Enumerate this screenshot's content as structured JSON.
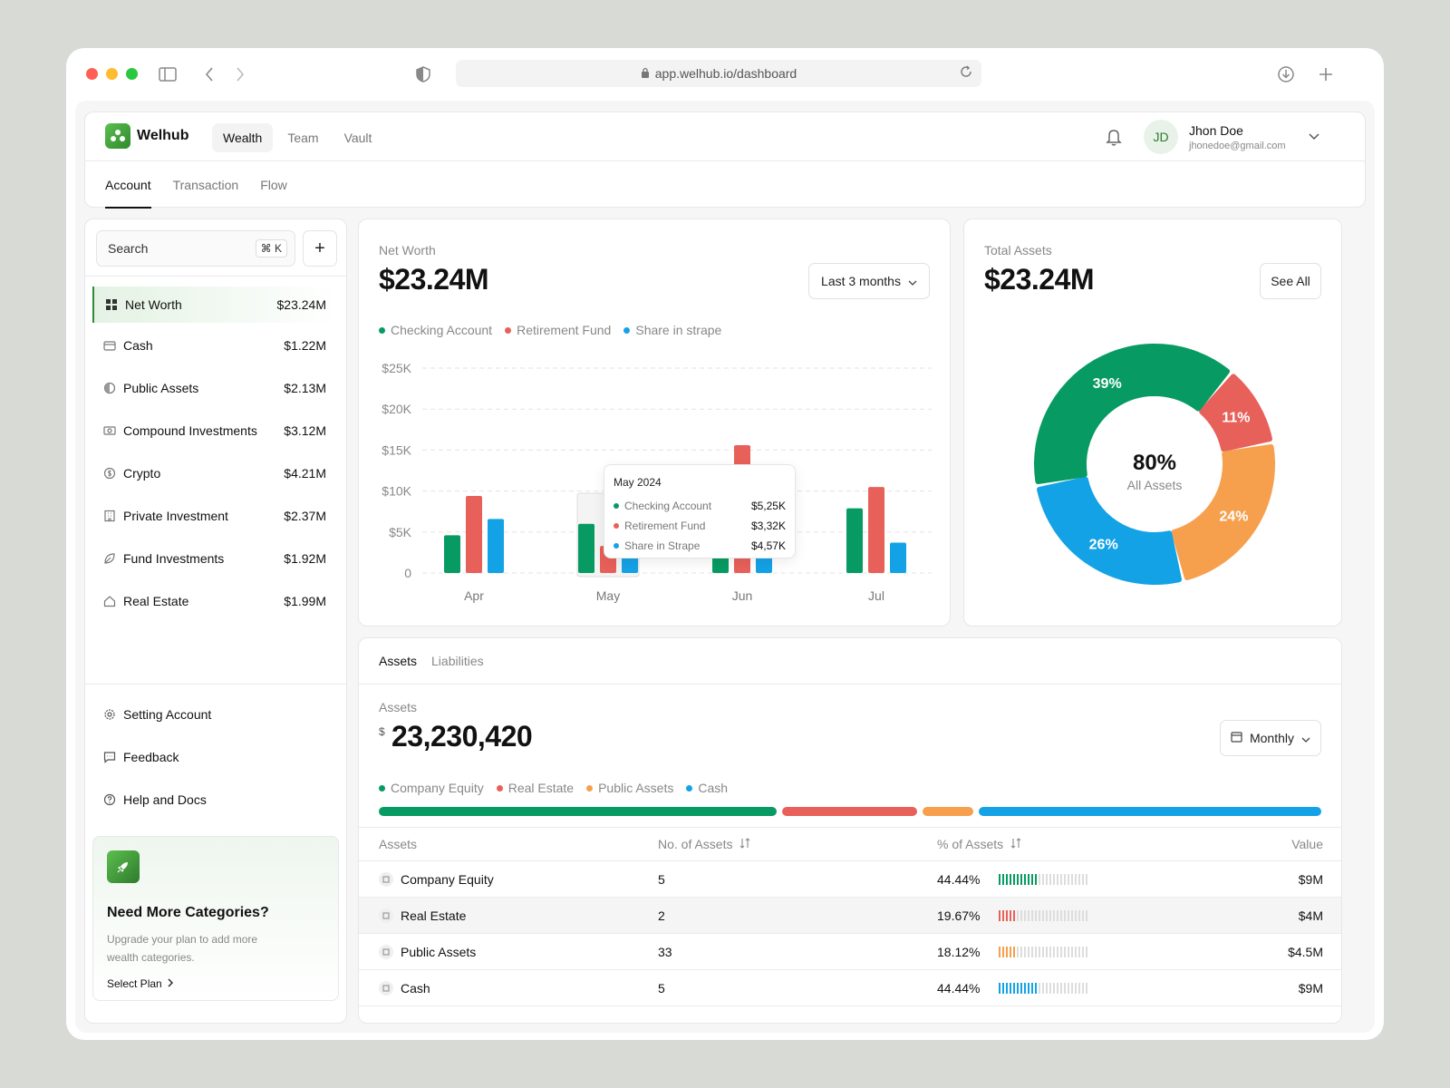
{
  "browser": {
    "url": "app.welhub.io/dashboard"
  },
  "brand": {
    "name": "Welhub",
    "accent": "#2f8a3a"
  },
  "main_tabs": [
    {
      "label": "Wealth",
      "active": true
    },
    {
      "label": "Team"
    },
    {
      "label": "Vault"
    }
  ],
  "user": {
    "initials": "JD",
    "name": "Jhon Doe",
    "email": "jhonedoe@gmail.com"
  },
  "sub_tabs": [
    {
      "label": "Account",
      "active": true
    },
    {
      "label": "Transaction"
    },
    {
      "label": "Flow"
    }
  ],
  "sidebar": {
    "search_placeholder": "Search",
    "shortcut": "⌘ K",
    "add_label": "+",
    "items": [
      {
        "label": "Net Worth",
        "value": "$23.24M",
        "icon": "grid-icon",
        "active": true
      },
      {
        "label": "Cash",
        "value": "$1.22M",
        "icon": "wallet-icon"
      },
      {
        "label": "Public Assets",
        "value": "$2.13M",
        "icon": "pie-icon"
      },
      {
        "label": "Compound Investments",
        "value": "$3.12M",
        "icon": "bill-icon"
      },
      {
        "label": "Crypto",
        "value": "$4.21M",
        "icon": "coin-icon"
      },
      {
        "label": "Private Investment",
        "value": "$2.37M",
        "icon": "building-icon"
      },
      {
        "label": "Fund Investments",
        "value": "$1.92M",
        "icon": "leaf-icon"
      },
      {
        "label": "Real Estate",
        "value": "$1.99M",
        "icon": "home-icon"
      }
    ],
    "footer": [
      {
        "label": "Setting Account",
        "icon": "gear-icon"
      },
      {
        "label": "Feedback",
        "icon": "message-icon"
      },
      {
        "label": "Help and Docs",
        "icon": "help-icon"
      }
    ],
    "promo": {
      "title": "Need More Categories?",
      "text": "Upgrade your plan to add more wealth categories.",
      "link": "Select Plan"
    }
  },
  "net_worth": {
    "label": "Net Worth",
    "value": "$23.24M",
    "range": "Last 3 months",
    "tooltip": {
      "title": "May 2024",
      "rows": [
        {
          "label": "Checking Account",
          "value": "$5,25K"
        },
        {
          "label": "Retirement Fund",
          "value": "$3,32K"
        },
        {
          "label": "Share in Strape",
          "value": "$4,57K"
        }
      ]
    }
  },
  "total_assets": {
    "label": "Total Assets",
    "value": "$23.24M",
    "see_all": "See All",
    "center_value": "80%",
    "center_label": "All Assets"
  },
  "assets": {
    "tabs": [
      {
        "label": "Assets",
        "active": true
      },
      {
        "label": "Liabilities"
      }
    ],
    "label": "Assets",
    "currency": "$",
    "value": "23,230,420",
    "period": "Monthly",
    "legend": [
      {
        "label": "Company Equity",
        "color": "#079b63"
      },
      {
        "label": "Real Estate",
        "color": "#e8605a"
      },
      {
        "label": "Public Assets",
        "color": "#f6a04d"
      },
      {
        "label": "Cash",
        "color": "#14a2e6"
      }
    ],
    "share_bar": [
      0.43,
      0.145,
      0.055,
      0.37
    ],
    "columns": [
      "Assets",
      "No. of Assets",
      "% of Assets",
      "Value"
    ],
    "rows": [
      {
        "name": "Company Equity",
        "count": "5",
        "pct": "44.44%",
        "pct_num": 0.4444,
        "value": "$9M",
        "color": "#079b63",
        "icon": "bank-icon"
      },
      {
        "name": "Real Estate",
        "count": "2",
        "pct": "19.67%",
        "pct_num": 0.1967,
        "value": "$4M",
        "color": "#e8605a",
        "icon": "house-icon"
      },
      {
        "name": "Public Assets",
        "count": "33",
        "pct": "18.12%",
        "pct_num": 0.1812,
        "value": "$4.5M",
        "color": "#f6a04d",
        "icon": "box-icon"
      },
      {
        "name": "Cash",
        "count": "5",
        "pct": "44.44%",
        "pct_num": 0.4444,
        "value": "$9M",
        "color": "#14a2e6",
        "icon": "cash-icon"
      }
    ]
  },
  "chart_data": [
    {
      "type": "bar",
      "categories": [
        "Apr",
        "May",
        "Jun",
        "Jul"
      ],
      "series": [
        {
          "name": "Checking Account",
          "color": "#079b63",
          "values": [
            4.6,
            6.0,
            5.2,
            7.9
          ]
        },
        {
          "name": "Retirement Fund",
          "color": "#e8605a",
          "values": [
            9.4,
            3.3,
            15.6,
            10.5
          ]
        },
        {
          "name": "Share in strape",
          "color": "#14a2e6",
          "values": [
            6.6,
            4.6,
            3.3,
            3.7
          ]
        }
      ],
      "y_ticks": [
        "0",
        "$5K",
        "$10K",
        "$15K",
        "$20K",
        "$25K"
      ],
      "ylim": [
        0,
        25
      ],
      "grid": true,
      "legend": "top-left"
    },
    {
      "type": "pie",
      "categories": [
        "Company Equity",
        "Real Estate",
        "Public Assets",
        "Cash"
      ],
      "labels": [
        "39%",
        "11%",
        "24%",
        "26%"
      ],
      "values": [
        39,
        11,
        24,
        26
      ],
      "colors": [
        "#079b63",
        "#e8605a",
        "#f6a04d",
        "#14a2e6"
      ]
    }
  ]
}
